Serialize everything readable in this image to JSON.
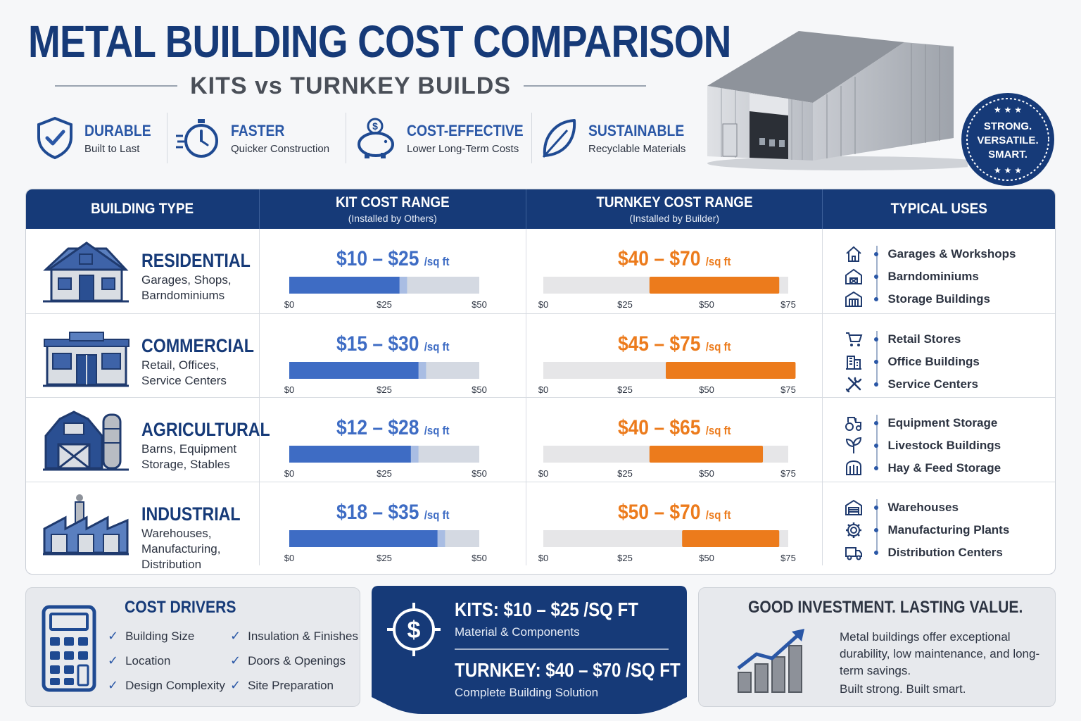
{
  "header": {
    "title": "METAL BUILDING COST COMPARISON",
    "subtitle": "KITS vs TURNKEY BUILDS"
  },
  "features": [
    {
      "title": "DURABLE",
      "sub": "Built to Last",
      "icon": "shield-check-icon"
    },
    {
      "title": "FASTER",
      "sub": "Quicker Construction",
      "icon": "stopwatch-icon"
    },
    {
      "title": "COST-EFFECTIVE",
      "sub": "Lower Long-Term Costs",
      "icon": "piggy-bank-icon"
    },
    {
      "title": "SUSTAINABLE",
      "sub": "Recyclable Materials",
      "icon": "leaf-icon"
    }
  ],
  "badge": {
    "line1": "STRONG.",
    "line2": "VERSATILE.",
    "line3": "SMART."
  },
  "table": {
    "headers": {
      "type": "BUILDING TYPE",
      "kit": "KIT COST RANGE",
      "kit_sub": "(Installed by Others)",
      "turnkey": "TURNKEY COST RANGE",
      "turnkey_sub": "(Installed by Builder)",
      "uses": "TYPICAL USES"
    },
    "rows": [
      {
        "name": "RESIDENTIAL",
        "desc": "Garages, Shops, Barndominiums",
        "kit_label": "$10 – $25",
        "turnkey_label": "$40 – $70",
        "uses": [
          {
            "label": "Garages & Workshops",
            "icon": "house-icon"
          },
          {
            "label": "Barndominiums",
            "icon": "barn-house-icon"
          },
          {
            "label": "Storage Buildings",
            "icon": "storage-building-icon"
          }
        ]
      },
      {
        "name": "COMMERCIAL",
        "desc": "Retail, Offices, Service Centers",
        "kit_label": "$15 – $30",
        "turnkey_label": "$45 – $75",
        "uses": [
          {
            "label": "Retail Stores",
            "icon": "cart-icon"
          },
          {
            "label": "Office Buildings",
            "icon": "office-icon"
          },
          {
            "label": "Service Centers",
            "icon": "tools-icon"
          }
        ]
      },
      {
        "name": "AGRICULTURAL",
        "desc": "Barns, Equipment Storage, Stables",
        "kit_label": "$12 – $28",
        "turnkey_label": "$40 – $65",
        "uses": [
          {
            "label": "Equipment Storage",
            "icon": "tractor-icon"
          },
          {
            "label": "Livestock Buildings",
            "icon": "sprout-icon"
          },
          {
            "label": "Hay & Feed Storage",
            "icon": "hay-icon"
          }
        ]
      },
      {
        "name": "INDUSTRIAL",
        "desc": "Warehouses, Manufacturing, Distribution",
        "kit_label": "$18 – $35",
        "turnkey_label": "$50 – $70",
        "uses": [
          {
            "label": "Warehouses",
            "icon": "warehouse-icon"
          },
          {
            "label": "Manufacturing Plants",
            "icon": "gear-icon"
          },
          {
            "label": "Distribution Centers",
            "icon": "truck-icon"
          }
        ]
      }
    ],
    "unit": "/sq ft"
  },
  "chart_data": {
    "type": "bar",
    "categories": [
      "RESIDENTIAL",
      "COMMERCIAL",
      "AGRICULTURAL",
      "INDUSTRIAL"
    ],
    "series": [
      {
        "name": "KIT COST RANGE",
        "low": [
          10,
          15,
          12,
          18
        ],
        "high": [
          25,
          30,
          28,
          35
        ],
        "ticks": [
          "$0",
          "$25",
          "$50"
        ],
        "xlim": [
          0,
          50
        ],
        "color": "#3e6cc4"
      },
      {
        "name": "TURNKEY COST RANGE",
        "low": [
          40,
          45,
          40,
          50
        ],
        "high": [
          70,
          75,
          65,
          70
        ],
        "ticks": [
          "$0",
          "$25",
          "$50",
          "$75"
        ],
        "xlim": [
          0,
          75
        ],
        "color": "#ec7b1c"
      }
    ]
  },
  "drivers": {
    "title": "COST DRIVERS",
    "items": [
      "Building Size",
      "Location",
      "Design Complexity",
      "Insulation & Finishes",
      "Doors & Openings",
      "Site Preparation"
    ]
  },
  "summary": {
    "kits_title": "KITS:  $10 – $25 /SQ FT",
    "kits_sub": "Material & Components",
    "turnkey_title": "TURNKEY:  $40 – $70 /SQ FT",
    "turnkey_sub": "Complete Building Solution"
  },
  "investment": {
    "title": "GOOD INVESTMENT. LASTING VALUE.",
    "text": "Metal buildings offer exceptional durability, low maintenance, and long-term savings.",
    "tagline": "Built strong. Built smart."
  },
  "colors": {
    "navy": "#163a78",
    "blue": "#3e6cc4",
    "orange": "#ec7b1c"
  }
}
